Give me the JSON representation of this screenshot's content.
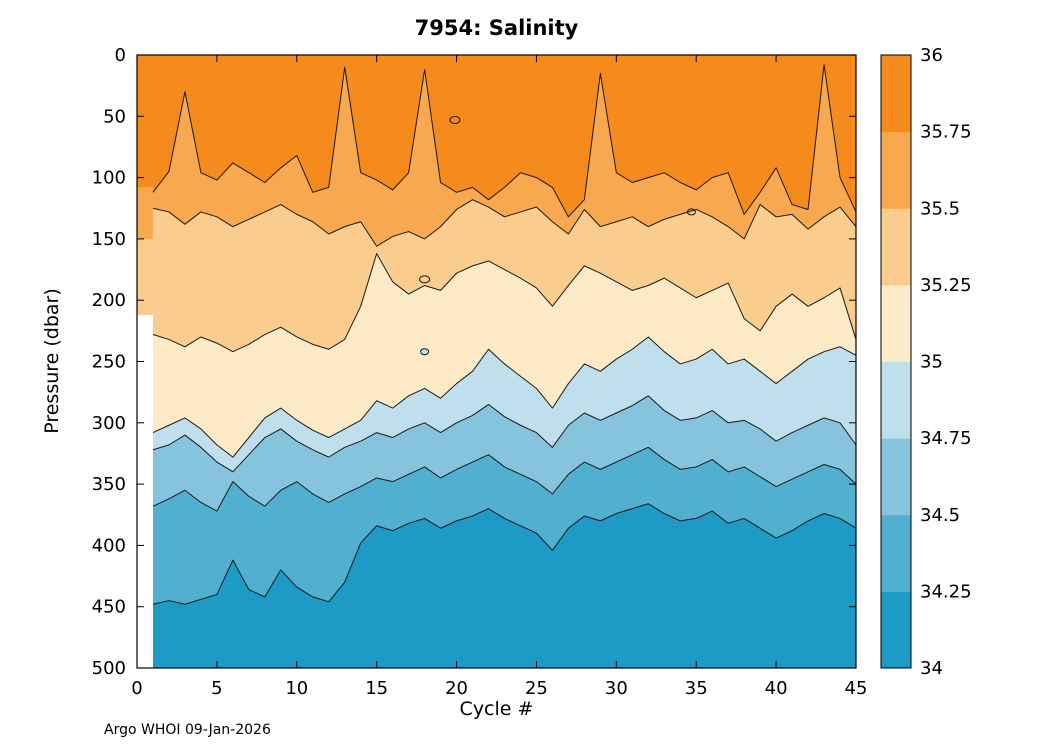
{
  "figure": {
    "title": "7954:  Salinity",
    "xlabel": "Cycle #",
    "ylabel": "Pressure (dbar)",
    "footer": "Argo WHOI 09-Jan-2026"
  },
  "chart_data": {
    "type": "heatmap",
    "style": "filled-contour",
    "title": "7954:  Salinity",
    "xlabel": "Cycle #",
    "ylabel": "Pressure (dbar)",
    "xlim": [
      0,
      45
    ],
    "ylim": [
      0,
      500
    ],
    "y_axis_reversed": true,
    "x_ticks": [
      0,
      5,
      10,
      15,
      20,
      25,
      30,
      35,
      40,
      45
    ],
    "y_ticks": [
      0,
      50,
      100,
      150,
      200,
      250,
      300,
      350,
      400,
      450,
      500
    ],
    "colorbar_ticks": [
      "34",
      "34.25",
      "34.5",
      "34.75",
      "35",
      "35.25",
      "35.5",
      "35.75",
      "36"
    ],
    "levels": [
      34,
      34.25,
      34.5,
      34.75,
      35,
      35.25,
      35.5,
      35.75,
      36
    ],
    "colors": [
      "#1E9AC6",
      "#51AFD0",
      "#85C4DC",
      "#C0DFEC",
      "#FCE9C6",
      "#FACC8E",
      "#F8A94F",
      "#F58A1D"
    ],
    "line_color": "#1a1a1a",
    "x": [
      1,
      2,
      3,
      4,
      5,
      6,
      7,
      8,
      9,
      10,
      11,
      12,
      13,
      14,
      15,
      16,
      17,
      18,
      19,
      20,
      21,
      22,
      23,
      24,
      25,
      26,
      27,
      28,
      29,
      30,
      31,
      32,
      33,
      34,
      35,
      36,
      37,
      38,
      39,
      40,
      41,
      42,
      43,
      44,
      45
    ],
    "contours": [
      {
        "level": 35.75,
        "depths": [
          112,
          95,
          30,
          96,
          102,
          88,
          96,
          104,
          92,
          82,
          112,
          108,
          10,
          96,
          102,
          110,
          96,
          12,
          104,
          112,
          108,
          118,
          108,
          96,
          100,
          108,
          132,
          118,
          15,
          96,
          104,
          100,
          96,
          104,
          110,
          100,
          96,
          130,
          112,
          92,
          122,
          126,
          8,
          100,
          128
        ]
      },
      {
        "level": 35.5,
        "depths": [
          125,
          128,
          138,
          128,
          132,
          140,
          134,
          128,
          122,
          130,
          136,
          146,
          140,
          136,
          156,
          148,
          144,
          150,
          140,
          126,
          118,
          124,
          132,
          128,
          124,
          136,
          146,
          126,
          140,
          136,
          132,
          140,
          134,
          130,
          126,
          132,
          140,
          150,
          122,
          132,
          130,
          142,
          132,
          124,
          140
        ]
      },
      {
        "level": 35.25,
        "depths": [
          228,
          232,
          238,
          230,
          235,
          242,
          236,
          228,
          222,
          230,
          236,
          240,
          232,
          205,
          162,
          185,
          195,
          188,
          192,
          178,
          172,
          168,
          175,
          182,
          190,
          205,
          188,
          172,
          178,
          185,
          192,
          188,
          182,
          190,
          198,
          192,
          186,
          215,
          225,
          205,
          195,
          205,
          198,
          190,
          232
        ]
      },
      {
        "level": 35.0,
        "depths": [
          308,
          302,
          296,
          305,
          318,
          328,
          312,
          296,
          288,
          298,
          306,
          312,
          305,
          298,
          282,
          288,
          278,
          272,
          280,
          268,
          258,
          240,
          252,
          262,
          272,
          288,
          268,
          252,
          258,
          248,
          240,
          230,
          242,
          252,
          248,
          240,
          252,
          248,
          258,
          268,
          258,
          248,
          242,
          238,
          245
        ]
      },
      {
        "level": 34.75,
        "depths": [
          322,
          318,
          310,
          320,
          332,
          340,
          326,
          312,
          305,
          315,
          322,
          328,
          320,
          315,
          308,
          312,
          305,
          300,
          308,
          300,
          294,
          285,
          295,
          302,
          308,
          320,
          302,
          292,
          298,
          292,
          286,
          278,
          290,
          298,
          296,
          290,
          300,
          298,
          305,
          315,
          308,
          302,
          296,
          300,
          318
        ]
      },
      {
        "level": 34.5,
        "depths": [
          368,
          362,
          355,
          365,
          372,
          348,
          360,
          368,
          355,
          348,
          358,
          365,
          358,
          352,
          345,
          348,
          342,
          336,
          345,
          338,
          332,
          326,
          336,
          342,
          348,
          358,
          342,
          332,
          338,
          332,
          326,
          320,
          330,
          338,
          336,
          330,
          340,
          336,
          344,
          352,
          346,
          340,
          334,
          338,
          350
        ]
      },
      {
        "level": 34.25,
        "depths": [
          448,
          445,
          448,
          444,
          440,
          412,
          436,
          442,
          420,
          434,
          442,
          446,
          430,
          398,
          384,
          388,
          382,
          378,
          386,
          380,
          376,
          370,
          378,
          384,
          390,
          404,
          386,
          376,
          380,
          374,
          370,
          366,
          374,
          380,
          378,
          372,
          382,
          378,
          386,
          394,
          388,
          380,
          374,
          378,
          386
        ]
      }
    ],
    "left_strip": {
      "x_from": 0,
      "x_to": 1,
      "segments": [
        {
          "color": 7,
          "from": 0,
          "to": 108
        },
        {
          "color": 6,
          "from": 108,
          "to": 150
        },
        {
          "color": 5,
          "from": 150,
          "to": 212
        }
      ]
    },
    "islands": [
      {
        "cycle": 19.9,
        "depth": 53,
        "rx": 5,
        "ry": 3.5,
        "color": null
      },
      {
        "cycle": 18.0,
        "depth": 183,
        "rx": 5,
        "ry": 3.5,
        "color": null
      },
      {
        "cycle": 18.0,
        "depth": 242,
        "rx": 4,
        "ry": 3,
        "color": 3
      },
      {
        "cycle": 34.7,
        "depth": 128,
        "rx": 4,
        "ry": 3,
        "color": null
      }
    ]
  }
}
